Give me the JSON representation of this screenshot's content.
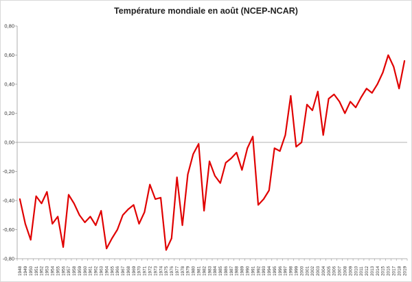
{
  "chart_data": {
    "type": "line",
    "title": "Température mondiale en août (NCEP-NCAR)",
    "xlabel": "",
    "ylabel": "",
    "ylim": [
      -0.8,
      0.8
    ],
    "yticks": [
      "-0,80",
      "-0,60",
      "-0,40",
      "-0,20",
      "0,00",
      "0,20",
      "0,40",
      "0,60",
      "0,80"
    ],
    "grid": false,
    "legend": "none",
    "series_color": "#e00000",
    "series": [
      {
        "values": [
          -0.39,
          -0.56,
          -0.67,
          -0.37,
          -0.42,
          -0.34,
          -0.56,
          -0.51,
          -0.72,
          -0.36,
          -0.42,
          -0.5,
          -0.55,
          -0.51,
          -0.57,
          -0.47,
          -0.73,
          -0.66,
          -0.6,
          -0.5,
          -0.46,
          -0.43,
          -0.56,
          -0.48,
          -0.29,
          -0.39,
          -0.38,
          -0.74,
          -0.66,
          -0.24,
          -0.57,
          -0.22,
          -0.08,
          -0.01,
          -0.47,
          -0.13,
          -0.23,
          -0.28,
          -0.14,
          -0.11,
          -0.07,
          -0.19,
          -0.04,
          0.04,
          -0.43,
          -0.39,
          -0.33,
          -0.04,
          -0.06,
          0.05,
          0.32,
          -0.03,
          0.0,
          0.26,
          0.22,
          0.35,
          0.05,
          0.3,
          0.33,
          0.28,
          0.2,
          0.28,
          0.24,
          0.31,
          0.37,
          0.34,
          0.4,
          0.48,
          0.6,
          0.52,
          0.37,
          0.56
        ]
      }
    ],
    "categories": [
      "1948",
      "1949",
      "1950",
      "1951",
      "1952",
      "1953",
      "1954",
      "1955",
      "1956",
      "1957",
      "1958",
      "1959",
      "1960",
      "1961",
      "1962",
      "1963",
      "1964",
      "1965",
      "1966",
      "1967",
      "1968",
      "1969",
      "1970",
      "1971",
      "1972",
      "1973",
      "1974",
      "1975",
      "1976",
      "1977",
      "1978",
      "1979",
      "1980",
      "1981",
      "1982",
      "1983",
      "1984",
      "1985",
      "1986",
      "1987",
      "1988",
      "1989",
      "1990",
      "1991",
      "1992",
      "1993",
      "1994",
      "1995",
      "1996",
      "1997",
      "1998",
      "1999",
      "2000",
      "2001",
      "2002",
      "2003",
      "2004",
      "2005",
      "2006",
      "2007",
      "2008",
      "2009",
      "2010",
      "2011",
      "2012",
      "2013",
      "2014",
      "2015",
      "2016",
      "2017",
      "2018",
      "2019"
    ]
  }
}
